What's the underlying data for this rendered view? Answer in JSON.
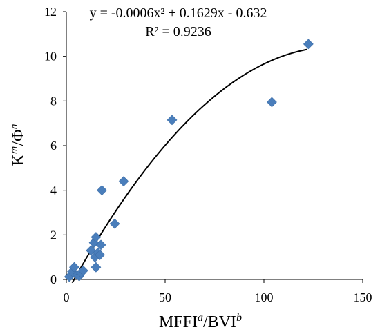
{
  "chart_data": {
    "type": "scatter",
    "xlabel": {
      "base": "MFFI",
      "sup1": "a",
      "sep": "/BVI",
      "sup2": "b"
    },
    "ylabel": {
      "base": "K",
      "sup1": "m",
      "sep": "/Φ",
      "sup2": "n"
    },
    "xlim": [
      0,
      150
    ],
    "ylim": [
      0,
      12
    ],
    "xticks": [
      0,
      50,
      100,
      150
    ],
    "yticks": [
      0,
      2,
      4,
      6,
      8,
      10,
      12
    ],
    "xtick_labels": [
      "0",
      "50",
      "100",
      "150"
    ],
    "ytick_labels": [
      "0",
      "2",
      "4",
      "6",
      "8",
      "10",
      "12"
    ],
    "grid": false,
    "marker_color": "#4a7ebb",
    "trendline": {
      "type": "polynomial",
      "coefficients": {
        "a": -0.0006,
        "b": 0.1629,
        "c": -0.632
      },
      "x_range": [
        3,
        122
      ],
      "equation": "y = -0.0006x² + 0.1629x - 0.632",
      "r_squared": "R² = 0.9236",
      "color": "#000000"
    },
    "points": [
      {
        "x": 1.5,
        "y": 0.12
      },
      {
        "x": 3.0,
        "y": 0.35
      },
      {
        "x": 4.0,
        "y": 0.55
      },
      {
        "x": 5.5,
        "y": 0.2
      },
      {
        "x": 6.5,
        "y": 0.15
      },
      {
        "x": 7.5,
        "y": 0.3
      },
      {
        "x": 8.5,
        "y": 0.4
      },
      {
        "x": 12.5,
        "y": 1.3
      },
      {
        "x": 14.0,
        "y": 1.65
      },
      {
        "x": 14.5,
        "y": 1.0
      },
      {
        "x": 15.0,
        "y": 0.55
      },
      {
        "x": 15.0,
        "y": 1.9
      },
      {
        "x": 16.0,
        "y": 1.2
      },
      {
        "x": 17.0,
        "y": 1.1
      },
      {
        "x": 17.5,
        "y": 1.55
      },
      {
        "x": 18.0,
        "y": 4.0
      },
      {
        "x": 24.5,
        "y": 2.5
      },
      {
        "x": 29.0,
        "y": 4.4
      },
      {
        "x": 53.5,
        "y": 7.15
      },
      {
        "x": 104.0,
        "y": 7.95
      },
      {
        "x": 122.5,
        "y": 10.55
      }
    ]
  }
}
